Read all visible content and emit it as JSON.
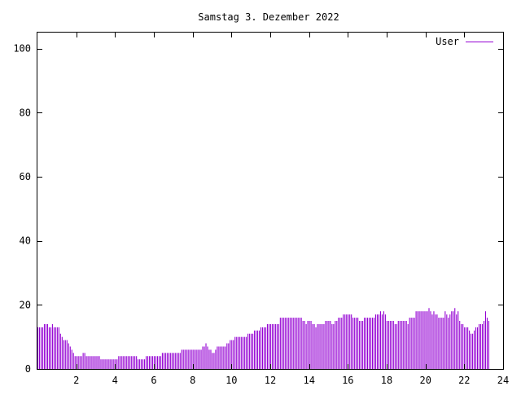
{
  "chart_data": {
    "type": "bar",
    "title": "Samstag 3. Dezember 2022",
    "xlabel": "",
    "ylabel": "",
    "xlim": [
      0,
      24
    ],
    "ylim": [
      0,
      105
    ],
    "x_ticks": [
      "2",
      "4",
      "6",
      "8",
      "10",
      "12",
      "14",
      "16",
      "18",
      "20",
      "22",
      "24"
    ],
    "y_ticks": [
      "0",
      "20",
      "40",
      "60",
      "80",
      "100"
    ],
    "legend_position": "top-right",
    "grid": false,
    "colors": {
      "series": "#9400d3",
      "axis": "#000000",
      "background": "#ffffff"
    },
    "bin_width_hours": 0.0833,
    "series": [
      {
        "name": "User",
        "values": [
          13,
          13,
          13,
          13,
          14,
          14,
          14,
          13,
          13,
          14,
          13,
          13,
          13,
          13,
          11,
          10,
          9,
          9,
          9,
          8,
          7,
          6,
          5,
          4,
          4,
          4,
          4,
          4,
          5,
          5,
          4,
          4,
          4,
          4,
          4,
          4,
          4,
          4,
          4,
          3,
          3,
          3,
          3,
          3,
          3,
          3,
          3,
          3,
          3,
          3,
          4,
          4,
          4,
          4,
          4,
          4,
          4,
          4,
          4,
          4,
          4,
          4,
          3,
          3,
          3,
          3,
          3,
          4,
          4,
          4,
          4,
          4,
          4,
          4,
          4,
          4,
          4,
          5,
          5,
          5,
          5,
          5,
          5,
          5,
          5,
          5,
          5,
          5,
          5,
          6,
          6,
          6,
          6,
          6,
          6,
          6,
          6,
          6,
          6,
          6,
          6,
          6,
          7,
          7,
          8,
          7,
          6,
          6,
          5,
          5,
          6,
          7,
          7,
          7,
          7,
          7,
          7,
          8,
          8,
          9,
          9,
          9,
          10,
          10,
          10,
          10,
          10,
          10,
          10,
          10,
          11,
          11,
          11,
          11,
          12,
          12,
          12,
          12,
          13,
          13,
          13,
          13,
          14,
          14,
          14,
          14,
          14,
          14,
          14,
          14,
          16,
          16,
          16,
          16,
          16,
          16,
          16,
          16,
          16,
          16,
          16,
          16,
          16,
          16,
          15,
          15,
          14,
          15,
          15,
          15,
          14,
          14,
          13,
          14,
          14,
          14,
          14,
          14,
          15,
          15,
          15,
          15,
          14,
          14,
          15,
          15,
          16,
          16,
          16,
          17,
          17,
          17,
          17,
          17,
          17,
          16,
          16,
          16,
          16,
          15,
          15,
          15,
          16,
          16,
          16,
          16,
          16,
          16,
          16,
          17,
          17,
          17,
          18,
          17,
          18,
          17,
          15,
          15,
          15,
          15,
          15,
          14,
          14,
          15,
          15,
          15,
          15,
          15,
          15,
          14,
          16,
          16,
          16,
          16,
          18,
          18,
          18,
          18,
          18,
          18,
          18,
          18,
          19,
          18,
          17,
          18,
          17,
          17,
          16,
          16,
          16,
          16,
          18,
          17,
          16,
          17,
          18,
          18,
          19,
          17,
          18,
          15,
          14,
          14,
          13,
          13,
          13,
          12,
          11,
          11,
          12,
          13,
          13,
          14,
          14,
          14,
          15,
          18,
          16,
          15
        ]
      }
    ]
  }
}
